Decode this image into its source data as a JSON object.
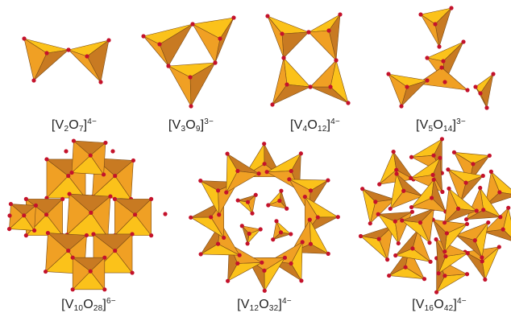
{
  "structures": [
    {
      "id": "v2o7",
      "label": {
        "pre": "[V",
        "s1": "2",
        "mid": "O",
        "s2": "7",
        "close": "]",
        "charge": "4−"
      }
    },
    {
      "id": "v3o9",
      "label": {
        "pre": "[V",
        "s1": "3",
        "mid": "O",
        "s2": "9",
        "close": "]",
        "charge": "3−"
      }
    },
    {
      "id": "v4o12",
      "label": {
        "pre": "[V",
        "s1": "4",
        "mid": "O",
        "s2": "12",
        "close": "]",
        "charge": "4−"
      }
    },
    {
      "id": "v5o14",
      "label": {
        "pre": "[V",
        "s1": "5",
        "mid": "O",
        "s2": "14",
        "close": "]",
        "charge": "3−"
      }
    },
    {
      "id": "v10o28",
      "label": {
        "pre": "[V",
        "s1": "10",
        "mid": "O",
        "s2": "28",
        "close": "]",
        "charge": "6−"
      }
    },
    {
      "id": "v12o32",
      "label": {
        "pre": "[V",
        "s1": "12",
        "mid": "O",
        "s2": "32",
        "close": "]",
        "charge": "4−"
      }
    },
    {
      "id": "v16o42",
      "label": {
        "pre": "[V",
        "s1": "16",
        "mid": "O",
        "s2": "42",
        "close": "]",
        "charge": "4−"
      }
    }
  ],
  "colors": {
    "light": "#fbc21a",
    "mid": "#f0a024",
    "dark": "#c87a22",
    "darker": "#9a5a1a",
    "edge": "#7a4a14",
    "oxygen": "#c4122b"
  }
}
